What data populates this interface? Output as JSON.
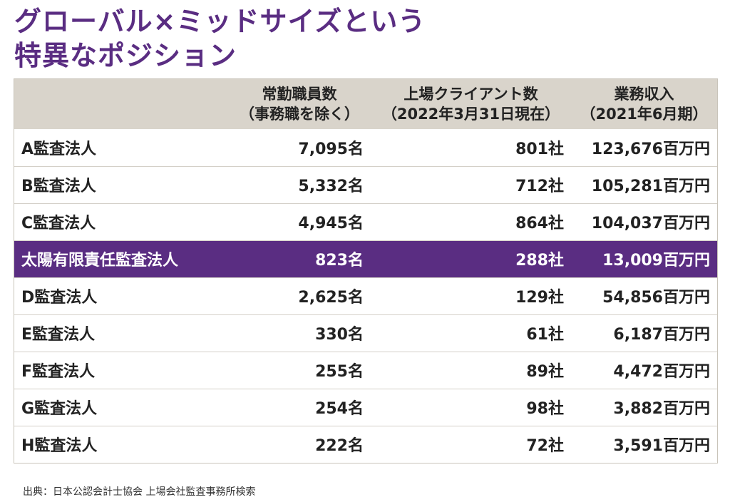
{
  "title": {
    "line1": "グローバル×ミッドサイズという",
    "line2": "特異なポジション"
  },
  "table": {
    "headers": [
      {
        "line1": "",
        "line2": ""
      },
      {
        "line1": "常勤職員数",
        "line2": "（事務職を除く）"
      },
      {
        "line1": "上場クライアント数",
        "line2": "（2022年3月31日現在）"
      },
      {
        "line1": "業務収入",
        "line2": "（2021年6月期）"
      }
    ],
    "rows": [
      {
        "name": "A監査法人",
        "staff": "7,095名",
        "clients": "801社",
        "revenue": "123,676百万円"
      },
      {
        "name": "B監査法人",
        "staff": "5,332名",
        "clients": "712社",
        "revenue": "105,281百万円"
      },
      {
        "name": "C監査法人",
        "staff": "4,945名",
        "clients": "864社",
        "revenue": "104,037百万円"
      },
      {
        "name": "太陽有限責任監査法人",
        "staff": "823名",
        "clients": "288社",
        "revenue": "13,009百万円"
      },
      {
        "name": "D監査法人",
        "staff": "2,625名",
        "clients": "129社",
        "revenue": "54,856百万円"
      },
      {
        "name": "E監査法人",
        "staff": "330名",
        "clients": "61社",
        "revenue": "6,187百万円"
      },
      {
        "name": "F監査法人",
        "staff": "255名",
        "clients": "89社",
        "revenue": "4,472百万円"
      },
      {
        "name": "G監査法人",
        "staff": "254名",
        "clients": "98社",
        "revenue": "3,882百万円"
      },
      {
        "name": "H監査法人",
        "staff": "222名",
        "clients": "72社",
        "revenue": "3,591百万円"
      }
    ],
    "highlight_row": 3,
    "highlight_color": "#5a2d82",
    "header_bg": "#d9d4cb"
  },
  "source": "出典：日本公認会計士協会 上場会社監査事務所検索",
  "colors": {
    "title": "#5a2d82"
  }
}
